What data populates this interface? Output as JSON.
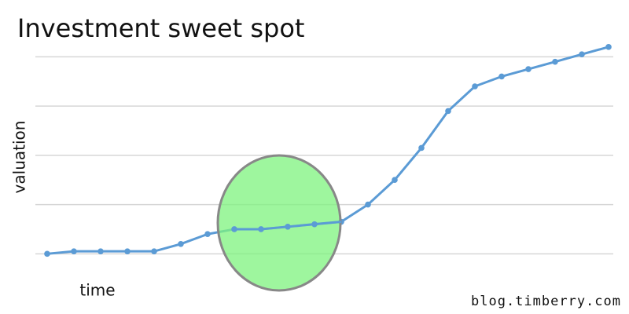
{
  "chart_data": {
    "type": "line",
    "title": "Investment sweet spot",
    "x_label": "time",
    "y_label": "valuation",
    "credit": "blog.timberry.com",
    "categories": [
      null,
      null,
      null,
      null,
      null,
      null,
      null,
      null,
      null,
      null,
      null,
      null,
      null,
      null,
      null,
      null,
      null,
      null,
      null,
      null,
      null,
      null
    ],
    "values": [
      0.0,
      0.05,
      0.05,
      0.05,
      0.05,
      0.2,
      0.4,
      0.5,
      0.5,
      0.55,
      0.6,
      0.65,
      1.0,
      1.5,
      2.15,
      2.9,
      3.4,
      3.6,
      3.75,
      3.9,
      4.05,
      4.2
    ],
    "color": "#5b9bd5",
    "ylim": [
      -0.25,
      4.5
    ],
    "grid_values": [
      0,
      1,
      2,
      3,
      4
    ]
  }
}
